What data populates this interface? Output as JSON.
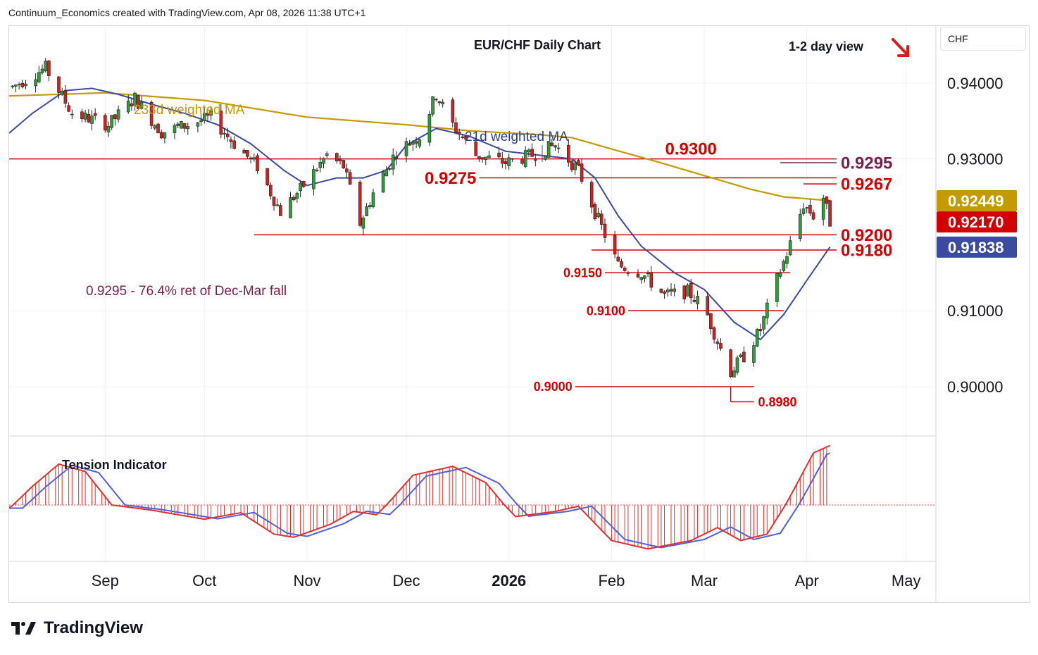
{
  "header": {
    "attribution": "Continuum_Economics created with TradingView.com, Apr 08, 2026 11:38 UTC+1"
  },
  "footer": {
    "brand": "TradingView"
  },
  "axis": {
    "currency": "CHF"
  },
  "chart_data": {
    "type": "candlestick",
    "title": "EUR/CHF Daily Chart",
    "subtitle": "1-2 day view",
    "view_arrow": "down-right-arrow",
    "price_ticks": [
      "0.94000",
      "0.93000",
      "0.91000",
      "0.90000"
    ],
    "ylim": [
      0.8935,
      0.9475
    ],
    "month_labels": [
      {
        "label": "Sep",
        "date": "2025-09-01"
      },
      {
        "label": "Oct",
        "date": "2025-10-01"
      },
      {
        "label": "Nov",
        "date": "2025-11-01"
      },
      {
        "label": "Dec",
        "date": "2025-12-01"
      },
      {
        "label": "2026",
        "date": "2026-01-01",
        "bold": true
      },
      {
        "label": "Feb",
        "date": "2026-02-01"
      },
      {
        "label": "Mar",
        "date": "2026-03-01"
      },
      {
        "label": "Apr",
        "date": "2026-04-01"
      },
      {
        "label": "May",
        "date": "2026-05-01"
      }
    ],
    "x_range": [
      "2025-08-03",
      "2026-05-10"
    ],
    "price_badges": [
      {
        "value": "0.92449",
        "color": "#c49a00",
        "price": 0.92449
      },
      {
        "value": "0.92170",
        "color": "#d20000",
        "price": 0.9217
      },
      {
        "value": "0.91838",
        "color": "#3b4ba0",
        "price": 0.91838
      }
    ],
    "levels": [
      {
        "label": "0.9300",
        "price": 0.93,
        "from": "2025-08-03",
        "to": "2026-04-10",
        "color": "#d20000",
        "size": "large",
        "label_date": "2026-02-25"
      },
      {
        "label": "0.9295",
        "price": 0.9295,
        "from": "2026-03-24",
        "to": "2026-04-10",
        "color": "#7a1f4d",
        "size": "large",
        "label_side": "right"
      },
      {
        "label": "0.9275",
        "price": 0.9275,
        "from": "2025-12-23",
        "to": "2026-04-10",
        "color": "#d20000",
        "size": "large",
        "label_side": "left"
      },
      {
        "label": "0.9267",
        "price": 0.9267,
        "from": "2026-03-31",
        "to": "2026-04-10",
        "color": "#d20000",
        "size": "large",
        "label_side": "right"
      },
      {
        "label": "0.9200",
        "price": 0.92,
        "from": "2025-10-16",
        "to": "2026-04-10",
        "color": "#d20000",
        "size": "large",
        "label_side": "right"
      },
      {
        "label": "0.9180",
        "price": 0.918,
        "from": "2026-01-26",
        "to": "2026-04-10",
        "color": "#d20000",
        "size": "large",
        "label_side": "right"
      },
      {
        "label": "0.9150",
        "price": 0.915,
        "from": "2026-01-30",
        "to": "2026-03-27",
        "color": "#d20000",
        "size": "small",
        "label_side": "left"
      },
      {
        "label": "0.9100",
        "price": 0.91,
        "from": "2026-02-06",
        "to": "2026-03-25",
        "color": "#d20000",
        "size": "small",
        "label_side": "left"
      },
      {
        "label": "0.9000",
        "price": 0.9,
        "from": "2026-01-21",
        "to": "2026-03-16",
        "color": "#d20000",
        "size": "small",
        "label_side": "left"
      },
      {
        "label": "0.8980",
        "price": 0.898,
        "from": "2026-03-09",
        "to": "2026-03-16",
        "color": "#d20000",
        "size": "small",
        "label_side": "right",
        "hook": true
      }
    ],
    "annotations": [
      {
        "text": "0.9295 - 76.4% ret of Dec-Mar fall",
        "color": "#7a1f4d"
      },
      {
        "text": "233d weighted MA",
        "color": "#c49a00"
      },
      {
        "text": "21d weighted MA",
        "color": "#2a3f8f"
      },
      {
        "text": "Tension Indicator",
        "color": "#131722"
      }
    ],
    "ma233": [
      [
        "2025-08-03",
        0.9383
      ],
      [
        "2025-09-01",
        0.9387
      ],
      [
        "2025-10-01",
        0.9377
      ],
      [
        "2025-11-01",
        0.9355
      ],
      [
        "2025-12-01",
        0.9345
      ],
      [
        "2025-12-20",
        0.9337
      ],
      [
        "2026-01-10",
        0.9332
      ],
      [
        "2026-01-20",
        0.9328
      ],
      [
        "2026-02-01",
        0.9313
      ],
      [
        "2026-02-15",
        0.9296
      ],
      [
        "2026-03-01",
        0.9278
      ],
      [
        "2026-03-15",
        0.926
      ],
      [
        "2026-03-25",
        0.925
      ],
      [
        "2026-04-08",
        0.9245
      ]
    ],
    "ma21": [
      [
        "2025-08-03",
        0.9334
      ],
      [
        "2025-08-10",
        0.936
      ],
      [
        "2025-08-20",
        0.939
      ],
      [
        "2025-08-28",
        0.9393
      ],
      [
        "2025-09-05",
        0.9385
      ],
      [
        "2025-09-15",
        0.9372
      ],
      [
        "2025-09-25",
        0.936
      ],
      [
        "2025-10-05",
        0.9345
      ],
      [
        "2025-10-15",
        0.932
      ],
      [
        "2025-10-25",
        0.9285
      ],
      [
        "2025-11-01",
        0.9265
      ],
      [
        "2025-11-10",
        0.9275
      ],
      [
        "2025-11-18",
        0.9275
      ],
      [
        "2025-11-25",
        0.9285
      ],
      [
        "2025-12-01",
        0.9318
      ],
      [
        "2025-12-10",
        0.934
      ],
      [
        "2025-12-20",
        0.933
      ],
      [
        "2025-12-31",
        0.931
      ],
      [
        "2026-01-10",
        0.9305
      ],
      [
        "2026-01-20",
        0.93
      ],
      [
        "2026-01-27",
        0.9275
      ],
      [
        "2026-02-03",
        0.9225
      ],
      [
        "2026-02-10",
        0.9185
      ],
      [
        "2026-02-20",
        0.915
      ],
      [
        "2026-03-01",
        0.9128
      ],
      [
        "2026-03-10",
        0.9085
      ],
      [
        "2026-03-18",
        0.9062
      ],
      [
        "2026-03-25",
        0.9095
      ],
      [
        "2026-04-01",
        0.914
      ],
      [
        "2026-04-08",
        0.9184
      ]
    ],
    "price_path": [
      [
        "2025-08-04",
        0.9395
      ],
      [
        "2025-08-14",
        0.942
      ],
      [
        "2025-08-22",
        0.936
      ],
      [
        "2025-09-02",
        0.9345
      ],
      [
        "2025-09-10",
        0.938
      ],
      [
        "2025-09-18",
        0.9335
      ],
      [
        "2025-09-26",
        0.9345
      ],
      [
        "2025-10-03",
        0.9355
      ],
      [
        "2025-10-10",
        0.932
      ],
      [
        "2025-10-17",
        0.929
      ],
      [
        "2025-10-24",
        0.923
      ],
      [
        "2025-10-31",
        0.9265
      ],
      [
        "2025-11-07",
        0.9305
      ],
      [
        "2025-11-12",
        0.929
      ],
      [
        "2025-11-17",
        0.9215
      ],
      [
        "2025-11-21",
        0.9255
      ],
      [
        "2025-11-28",
        0.931
      ],
      [
        "2025-12-05",
        0.933
      ],
      [
        "2025-12-10",
        0.9385
      ],
      [
        "2025-12-15",
        0.9345
      ],
      [
        "2025-12-22",
        0.9305
      ],
      [
        "2025-12-31",
        0.9295
      ],
      [
        "2026-01-08",
        0.9305
      ],
      [
        "2026-01-15",
        0.9318
      ],
      [
        "2026-01-22",
        0.9285
      ],
      [
        "2026-01-27",
        0.923
      ],
      [
        "2026-02-03",
        0.916
      ],
      [
        "2026-02-10",
        0.915
      ],
      [
        "2026-02-17",
        0.912
      ],
      [
        "2026-02-24",
        0.9125
      ],
      [
        "2026-03-01",
        0.9105
      ],
      [
        "2026-03-05",
        0.906
      ],
      [
        "2026-03-09",
        0.902
      ],
      [
        "2026-03-13",
        0.904
      ],
      [
        "2026-03-18",
        0.9075
      ],
      [
        "2026-03-22",
        0.913
      ],
      [
        "2026-03-26",
        0.9175
      ],
      [
        "2026-03-31",
        0.924
      ],
      [
        "2026-04-03",
        0.9225
      ],
      [
        "2026-04-06",
        0.925
      ],
      [
        "2026-04-08",
        0.9217
      ]
    ],
    "tension_indicator": {
      "series": [
        [
          "2025-08-03",
          -0.05
        ],
        [
          "2025-08-10",
          0.25
        ],
        [
          "2025-08-18",
          0.55
        ],
        [
          "2025-08-26",
          0.45
        ],
        [
          "2025-09-03",
          0.0
        ],
        [
          "2025-09-15",
          -0.08
        ],
        [
          "2025-10-01",
          -0.22
        ],
        [
          "2025-10-12",
          -0.12
        ],
        [
          "2025-10-22",
          -0.45
        ],
        [
          "2025-10-28",
          -0.5
        ],
        [
          "2025-11-08",
          -0.3
        ],
        [
          "2025-11-15",
          -0.1
        ],
        [
          "2025-11-22",
          -0.15
        ],
        [
          "2025-12-03",
          0.4
        ],
        [
          "2025-12-15",
          0.52
        ],
        [
          "2025-12-25",
          0.3
        ],
        [
          "2026-01-03",
          -0.18
        ],
        [
          "2026-01-15",
          -0.1
        ],
        [
          "2026-01-22",
          -0.02
        ],
        [
          "2026-02-01",
          -0.55
        ],
        [
          "2026-02-12",
          -0.68
        ],
        [
          "2026-02-25",
          -0.55
        ],
        [
          "2026-03-05",
          -0.35
        ],
        [
          "2026-03-12",
          -0.55
        ],
        [
          "2026-03-20",
          -0.45
        ],
        [
          "2026-03-28",
          0.2
        ],
        [
          "2026-04-03",
          0.7
        ],
        [
          "2026-04-08",
          0.8
        ]
      ],
      "range": [
        -0.85,
        0.9
      ]
    }
  }
}
